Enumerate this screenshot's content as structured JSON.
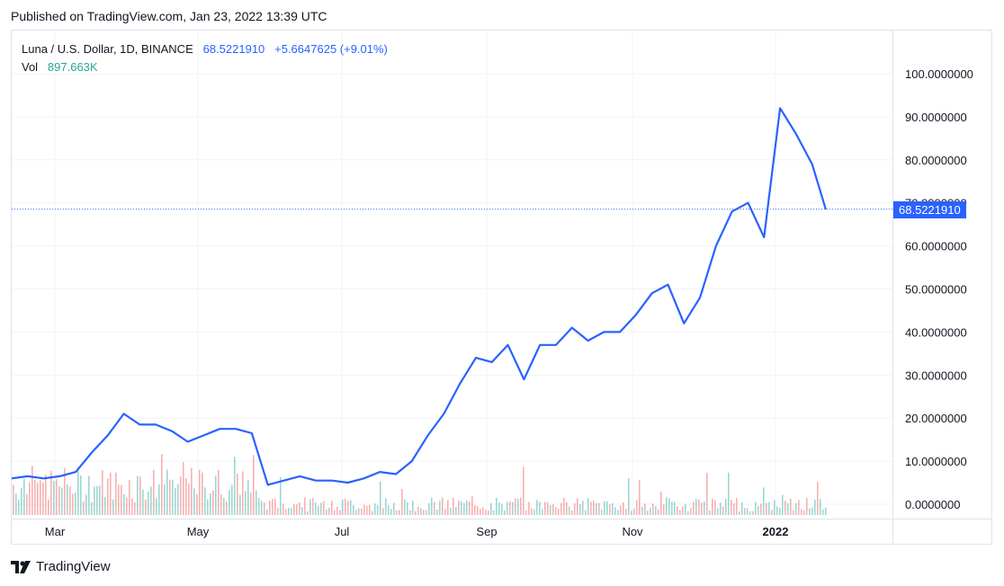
{
  "published": "Published on TradingView.com, Jan 23, 2022 13:39 UTC",
  "legend": {
    "symbol": "Luna / U.S. Dollar, 1D, BINANCE",
    "last": "68.5221910",
    "change": "+5.6647625 (+9.01%)",
    "vol_label": "Vol",
    "vol_value": "897.663K"
  },
  "price_tag": "68.5221910",
  "footer": {
    "brand": "TradingView",
    "logo_icon": "tradingview-logo-icon"
  },
  "colors": {
    "line": "#2962ff",
    "up": "#26a69a",
    "down": "#ef5350",
    "grid": "#f0f3fa"
  },
  "chart_data": {
    "type": "line",
    "title": "Luna / U.S. Dollar, 1D, BINANCE",
    "ylim": [
      0,
      100
    ],
    "y_ticks": [
      "100.0000000",
      "90.0000000",
      "80.0000000",
      "70.0000000",
      "60.0000000",
      "50.0000000",
      "40.0000000",
      "30.0000000",
      "20.0000000",
      "10.0000000",
      "0.0000000"
    ],
    "x_tick_labels": [
      "Mar",
      "May",
      "Jul",
      "Sep",
      "Nov",
      "2022"
    ],
    "grid": true,
    "current_value": 68.52,
    "series": [
      {
        "x": [
          "2021-02-01",
          "2021-02-08",
          "2021-02-15",
          "2021-02-22",
          "2021-03-01",
          "2021-03-08",
          "2021-03-15",
          "2021-03-22",
          "2021-03-29",
          "2021-04-05",
          "2021-04-12",
          "2021-04-19",
          "2021-04-26",
          "2021-05-03",
          "2021-05-10",
          "2021-05-17",
          "2021-05-24",
          "2021-05-31",
          "2021-06-07",
          "2021-06-14",
          "2021-06-21",
          "2021-06-28",
          "2021-07-05",
          "2021-07-12",
          "2021-07-19",
          "2021-07-26",
          "2021-08-02",
          "2021-08-09",
          "2021-08-16",
          "2021-08-23",
          "2021-08-30",
          "2021-09-06",
          "2021-09-13",
          "2021-09-20",
          "2021-09-27",
          "2021-10-04",
          "2021-10-11",
          "2021-10-18",
          "2021-10-25",
          "2021-11-01",
          "2021-11-08",
          "2021-11-15",
          "2021-11-22",
          "2021-11-29",
          "2021-12-06",
          "2021-12-13",
          "2021-12-20",
          "2021-12-27",
          "2022-01-03",
          "2022-01-10",
          "2022-01-17",
          "2022-01-23"
        ],
        "values": [
          6,
          6.5,
          6,
          6.5,
          7.5,
          12,
          16,
          21,
          18.5,
          18.5,
          17,
          14.5,
          16,
          17.5,
          17.5,
          16.5,
          4.5,
          5.5,
          6.5,
          5.5,
          5.5,
          5,
          6,
          7.5,
          7,
          10,
          16,
          21,
          28,
          34,
          33,
          37,
          29,
          37,
          37,
          41,
          38,
          40,
          40,
          44,
          49,
          51,
          42,
          48,
          60,
          68,
          70,
          62,
          92,
          86,
          79,
          68.5
        ]
      }
    ],
    "volume": {
      "label": "Vol",
      "last": "897.663K"
    }
  }
}
